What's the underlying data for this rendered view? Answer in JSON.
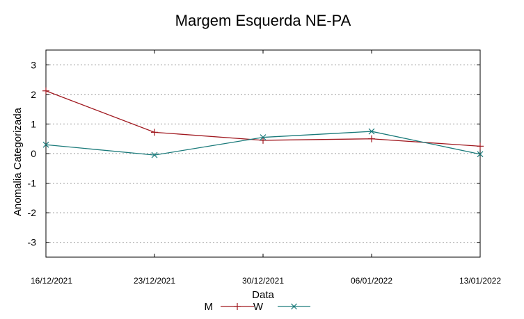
{
  "chart_data": {
    "type": "line",
    "title": "Margem Esquerda NE-PA",
    "xlabel": "Data",
    "ylabel": "Anomalia Categorizada",
    "categories": [
      "16/12/2021",
      "23/12/2021",
      "30/12/2021",
      "06/01/2022",
      "13/01/2022"
    ],
    "ylim": [
      -3.5,
      3.5
    ],
    "yticks": [
      "3",
      "2",
      "1",
      "0",
      "-1",
      "-2",
      "-3"
    ],
    "ytick_values": [
      3,
      2,
      1,
      0,
      -1,
      -2,
      -3
    ],
    "grid": true,
    "legend_position": "bottom-center",
    "series": [
      {
        "name": "M",
        "color": "#a0181f",
        "marker": "plus",
        "values": [
          2.12,
          0.72,
          0.45,
          0.5,
          0.25
        ]
      },
      {
        "name": "W",
        "color": "#1a7a7a",
        "marker": "cross",
        "values": [
          0.3,
          -0.05,
          0.55,
          0.75,
          -0.02
        ]
      }
    ]
  }
}
